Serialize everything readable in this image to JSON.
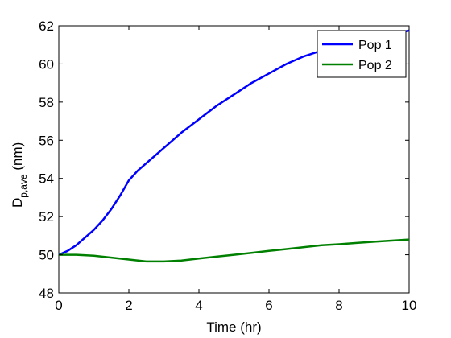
{
  "chart_data": {
    "type": "line",
    "title": "",
    "xlabel": "Time (hr)",
    "ylabel": {
      "main": "D",
      "subscript": "p,ave",
      "unit": " (nm)"
    },
    "xlim": [
      0,
      10
    ],
    "ylim": [
      48,
      62
    ],
    "xticks": [
      0,
      2,
      4,
      6,
      8,
      10
    ],
    "yticks": [
      48,
      50,
      52,
      54,
      56,
      58,
      60,
      62
    ],
    "grid": false,
    "legend_position": "top-right",
    "series": [
      {
        "name": "Pop 1",
        "color": "#0000ff",
        "x": [
          0,
          0.25,
          0.5,
          0.75,
          1.0,
          1.25,
          1.5,
          1.75,
          2.0,
          2.25,
          2.5,
          3.0,
          3.5,
          4.0,
          4.5,
          5.0,
          5.5,
          6.0,
          6.5,
          7.0,
          7.5,
          8.0,
          8.5,
          9.0,
          9.5,
          10.0
        ],
        "y": [
          50.0,
          50.2,
          50.5,
          50.9,
          51.3,
          51.8,
          52.4,
          53.1,
          53.9,
          54.4,
          54.8,
          55.6,
          56.4,
          57.1,
          57.8,
          58.4,
          59.0,
          59.5,
          60.0,
          60.4,
          60.7,
          60.95,
          61.15,
          61.35,
          61.55,
          61.75
        ]
      },
      {
        "name": "Pop 2",
        "color": "#008000",
        "x": [
          0,
          0.5,
          1.0,
          1.5,
          2.0,
          2.5,
          3.0,
          3.5,
          4.0,
          4.5,
          5.0,
          5.5,
          6.0,
          6.5,
          7.0,
          7.5,
          8.0,
          8.5,
          9.0,
          9.5,
          10.0
        ],
        "y": [
          50.0,
          50.0,
          49.95,
          49.85,
          49.75,
          49.65,
          49.65,
          49.7,
          49.8,
          49.9,
          50.0,
          50.1,
          50.2,
          50.3,
          50.4,
          50.5,
          50.55,
          50.62,
          50.68,
          50.74,
          50.8
        ]
      }
    ]
  }
}
